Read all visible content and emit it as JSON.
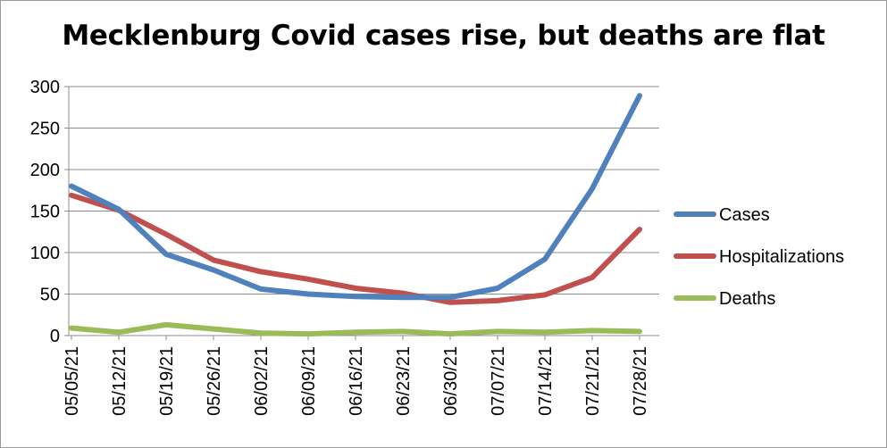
{
  "chart_data": {
    "type": "line",
    "title": "Mecklenburg Covid cases rise, but deaths are flat",
    "xlabel": "",
    "ylabel": "",
    "ylim": [
      0,
      300
    ],
    "yticks": [
      0,
      50,
      100,
      150,
      200,
      250,
      300
    ],
    "grid": true,
    "legend_position": "right",
    "categories": [
      "05/05/21",
      "05/12/21",
      "05/19/21",
      "05/26/21",
      "06/02/21",
      "06/09/21",
      "06/16/21",
      "06/23/21",
      "06/30/21",
      "07/07/21",
      "07/14/21",
      "07/21/21",
      "07/28/21"
    ],
    "series": [
      {
        "name": "Cases",
        "color": "#4f81bd",
        "values": [
          180,
          152,
          98,
          79,
          56,
          50,
          47,
          46,
          46,
          57,
          92,
          177,
          289
        ]
      },
      {
        "name": "Hospitalizations",
        "color": "#c0504d",
        "values": [
          169,
          151,
          122,
          91,
          77,
          68,
          57,
          51,
          40,
          42,
          49,
          70,
          128
        ]
      },
      {
        "name": "Deaths",
        "color": "#9bbb59",
        "values": [
          9,
          4,
          13,
          8,
          3,
          2,
          4,
          5,
          2,
          5,
          4,
          6,
          5
        ]
      }
    ]
  }
}
